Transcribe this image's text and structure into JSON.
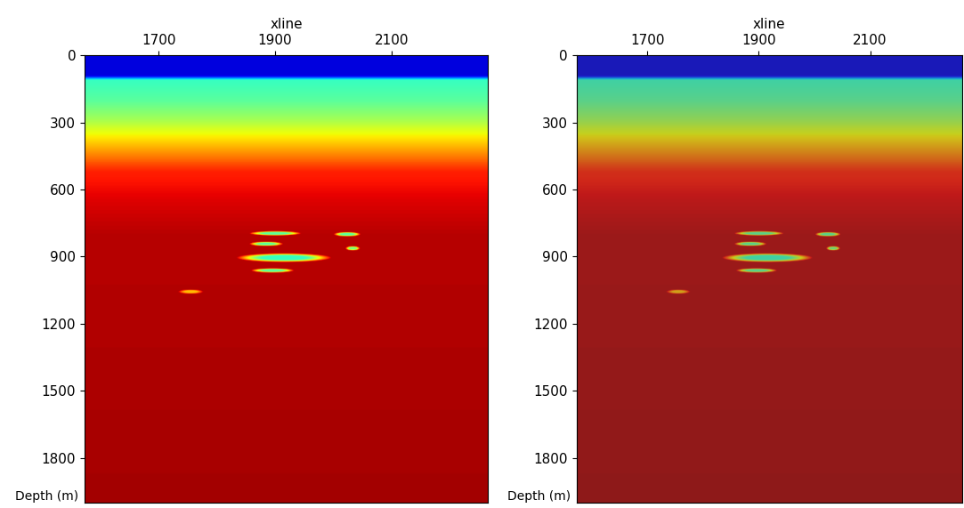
{
  "chart_data": [
    {
      "type": "heatmap",
      "x_label": "xline",
      "y_label": "Depth (m)",
      "xlim": [
        1573,
        2265
      ],
      "ylim": [
        2000,
        0
      ],
      "xticks": [
        1700,
        1900,
        2100
      ],
      "yticks": [
        0,
        300,
        600,
        900,
        1200,
        1500,
        1800
      ],
      "clim": [
        1400,
        2600
      ],
      "velocity_profile": {
        "depth": [
          0,
          90,
          110,
          200,
          280,
          340,
          400,
          460,
          520,
          650,
          800,
          2000
        ],
        "velocity": [
          1500,
          1500,
          1900,
          1950,
          2050,
          2150,
          2250,
          2350,
          2450,
          2500,
          2540,
          2560
        ]
      },
      "anomalies": [
        {
          "xline": [
            1855,
            1944
          ],
          "depth": [
            786,
            806
          ],
          "velocity": 1950
        },
        {
          "xline": [
            1855,
            1913
          ],
          "depth": [
            833,
            853
          ],
          "velocity": 1950
        },
        {
          "xline": [
            1833,
            1996
          ],
          "depth": [
            885,
            925
          ],
          "velocity": 1900
        },
        {
          "xline": [
            1858,
            1932
          ],
          "depth": [
            952,
            972
          ],
          "velocity": 1950
        },
        {
          "xline": [
            2000,
            2046
          ],
          "depth": [
            790,
            810
          ],
          "velocity": 1950
        },
        {
          "xline": [
            2020,
            2045
          ],
          "depth": [
            853,
            873
          ],
          "velocity": 2000
        },
        {
          "xline": [
            1733,
            1776
          ],
          "depth": [
            1047,
            1067
          ],
          "velocity": 2250
        }
      ]
    },
    {
      "type": "heatmap_overlay",
      "x_label": "xline",
      "y_label": "Depth (m)",
      "xlim": [
        1573,
        2265
      ],
      "ylim": [
        2000,
        0
      ],
      "xticks": [
        1700,
        1900,
        2100
      ],
      "yticks": [
        0,
        300,
        600,
        900,
        1200,
        1500,
        1800
      ],
      "clim": [
        1400,
        2600
      ],
      "velocity_profile": {
        "depth": [
          0,
          90,
          110,
          200,
          280,
          340,
          400,
          460,
          520,
          650,
          800,
          2000
        ],
        "velocity": [
          1500,
          1500,
          1900,
          1950,
          2050,
          2150,
          2250,
          2350,
          2450,
          2500,
          2540,
          2560
        ]
      },
      "anomalies": [
        {
          "xline": [
            1855,
            1944
          ],
          "depth": [
            786,
            806
          ],
          "velocity": 1950
        },
        {
          "xline": [
            1855,
            1913
          ],
          "depth": [
            833,
            853
          ],
          "velocity": 1950
        },
        {
          "xline": [
            1833,
            1996
          ],
          "depth": [
            885,
            925
          ],
          "velocity": 1900
        },
        {
          "xline": [
            1858,
            1932
          ],
          "depth": [
            952,
            972
          ],
          "velocity": 1950
        },
        {
          "xline": [
            2000,
            2046
          ],
          "depth": [
            790,
            810
          ],
          "velocity": 1950
        },
        {
          "xline": [
            2020,
            2045
          ],
          "depth": [
            853,
            873
          ],
          "velocity": 2000
        },
        {
          "xline": [
            1733,
            1776
          ],
          "depth": [
            1047,
            1067
          ],
          "velocity": 2250
        }
      ]
    }
  ]
}
